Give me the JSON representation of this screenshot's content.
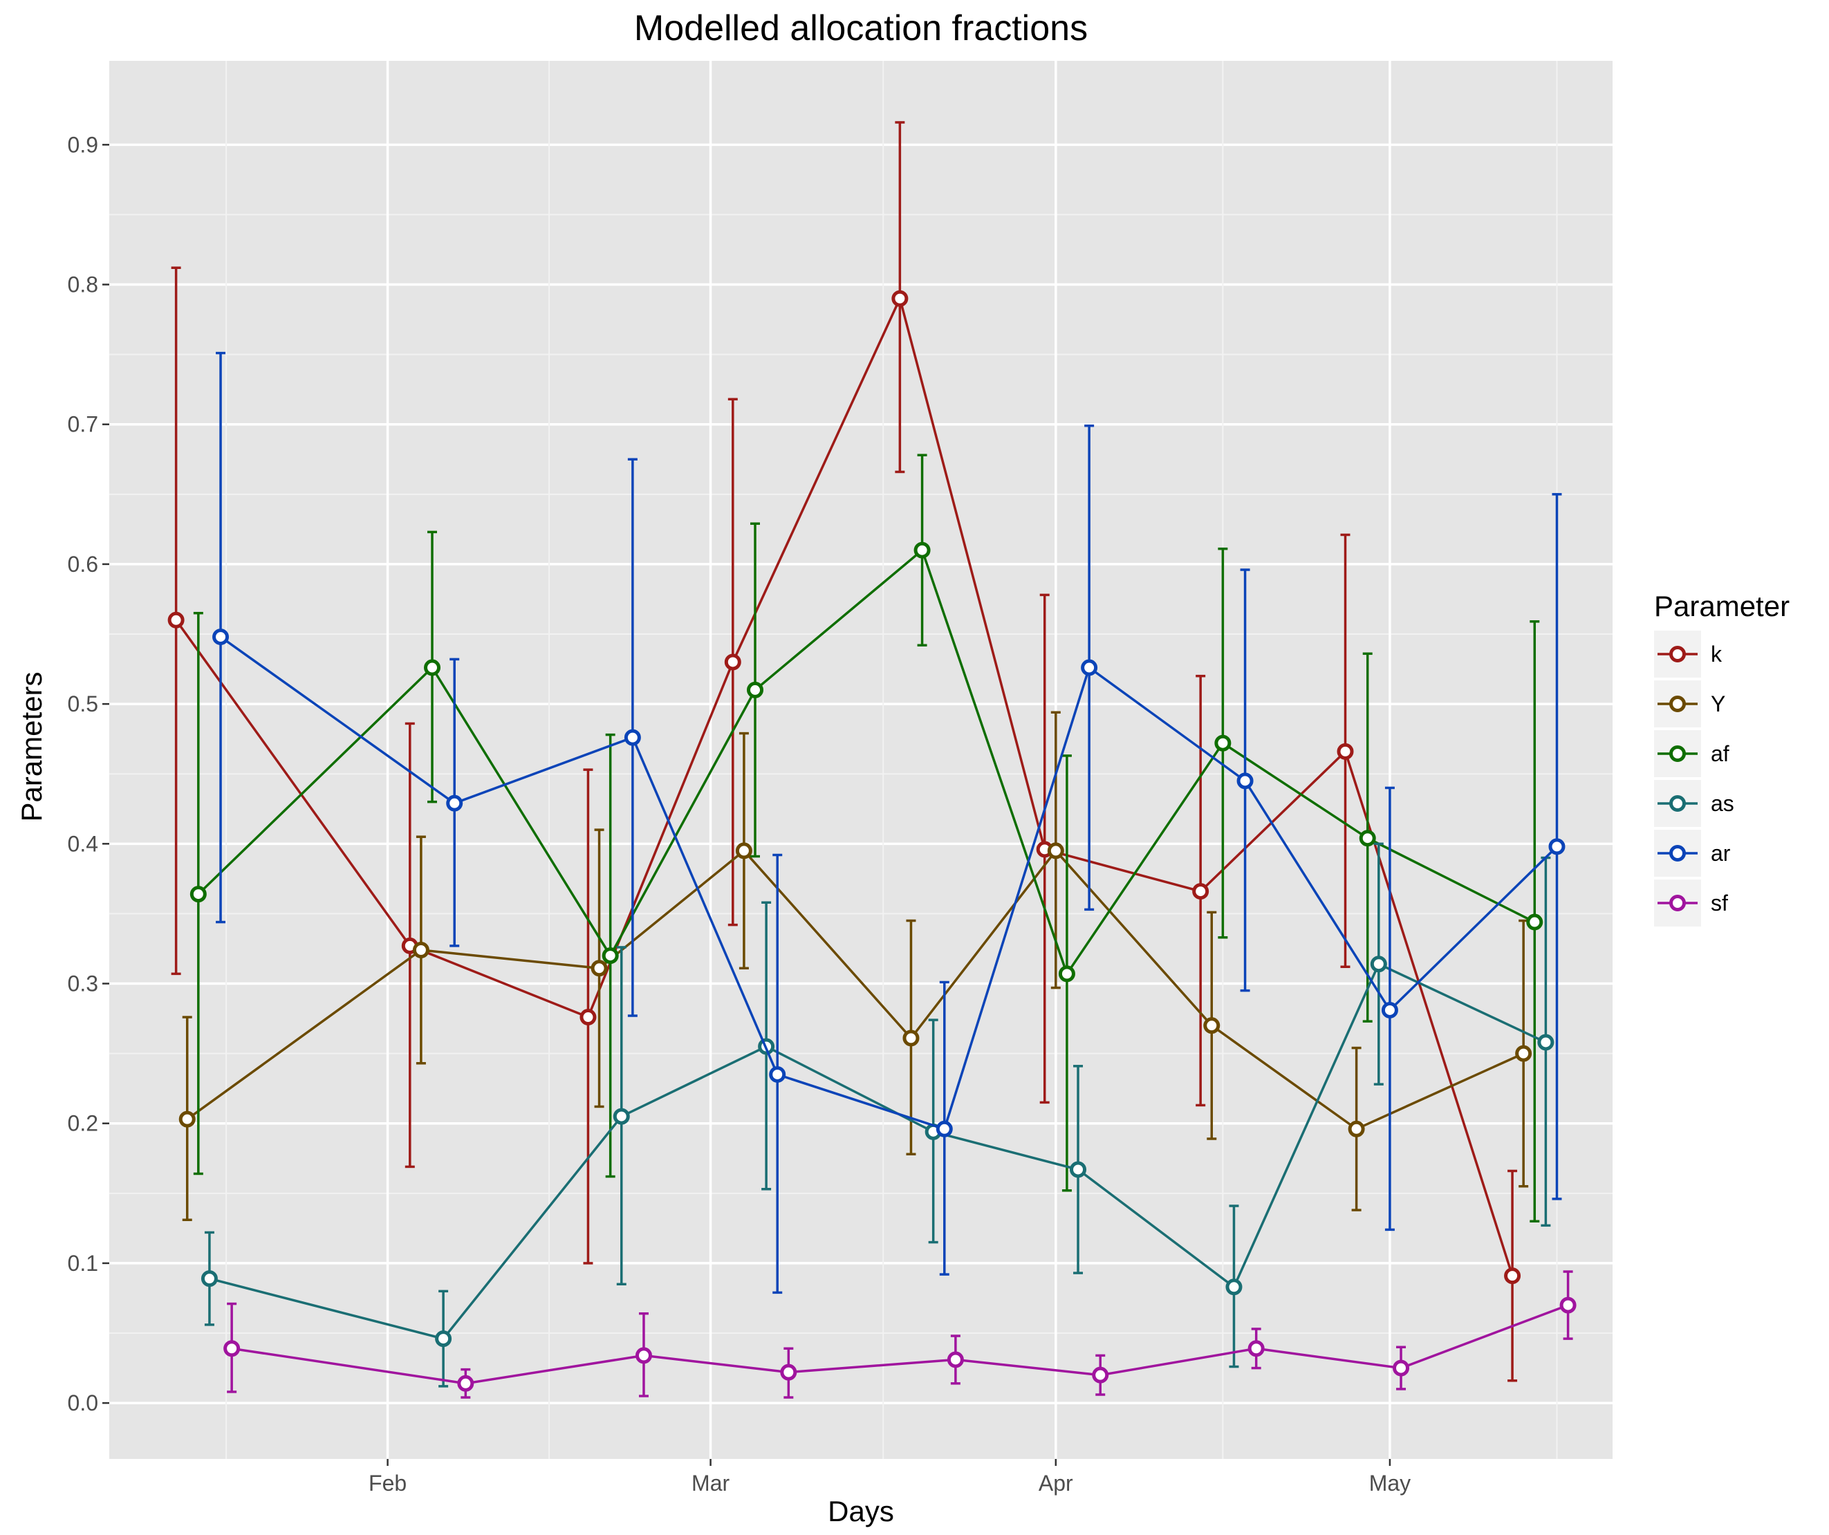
{
  "chart_data": {
    "type": "line",
    "title": "Modelled allocation fractions",
    "xlabel": "Days",
    "ylabel": "Parameters",
    "x_type": "date",
    "xlim": [
      "2016-01-07",
      "2016-05-21"
    ],
    "ylim": [
      -0.04,
      0.96
    ],
    "yticks": [
      0.0,
      0.1,
      0.2,
      0.3,
      0.4,
      0.5,
      0.6,
      0.7,
      0.8,
      0.9
    ],
    "ytick_labels": [
      "0.0",
      "0.1",
      "0.2",
      "0.3",
      "0.4",
      "0.5",
      "0.6",
      "0.7",
      "0.8",
      "0.9"
    ],
    "xticks": [
      "2016-02-01",
      "2016-03-01",
      "2016-04-01",
      "2016-05-01"
    ],
    "xtick_labels": [
      "Feb",
      "Mar",
      "Apr",
      "May"
    ],
    "grid": true,
    "background": "#e5e5e5",
    "legend": {
      "title": "Parameter",
      "position": "right"
    },
    "series": [
      {
        "name": "k",
        "color": "#9e1b18",
        "x": [
          "2016-01-13",
          "2016-02-03",
          "2016-02-19",
          "2016-03-03",
          "2016-03-18",
          "2016-03-31",
          "2016-04-14",
          "2016-04-27",
          "2016-05-12"
        ],
        "y": [
          0.56,
          0.327,
          0.276,
          0.53,
          0.79,
          0.396,
          0.366,
          0.466,
          0.091
        ],
        "ymin": [
          0.307,
          0.169,
          0.1,
          0.342,
          0.666,
          0.215,
          0.213,
          0.312,
          0.016
        ],
        "ymax": [
          0.812,
          0.486,
          0.453,
          0.718,
          0.916,
          0.578,
          0.52,
          0.621,
          0.166
        ]
      },
      {
        "name": "Y",
        "color": "#6b4a00",
        "x": [
          "2016-01-14",
          "2016-02-04",
          "2016-02-20",
          "2016-03-04",
          "2016-03-19",
          "2016-04-01",
          "2016-04-15",
          "2016-04-28",
          "2016-05-13"
        ],
        "y": [
          0.203,
          0.324,
          0.311,
          0.395,
          0.261,
          0.395,
          0.27,
          0.196,
          0.25
        ],
        "ymin": [
          0.131,
          0.243,
          0.212,
          0.311,
          0.178,
          0.297,
          0.189,
          0.138,
          0.155
        ],
        "ymax": [
          0.276,
          0.405,
          0.41,
          0.479,
          0.345,
          0.494,
          0.351,
          0.254,
          0.345
        ]
      },
      {
        "name": "af",
        "color": "#0f6e00",
        "x": [
          "2016-01-15",
          "2016-02-05",
          "2016-02-21",
          "2016-03-05",
          "2016-03-20",
          "2016-04-02",
          "2016-04-16",
          "2016-04-29",
          "2016-05-14"
        ],
        "y": [
          0.364,
          0.526,
          0.32,
          0.51,
          0.61,
          0.307,
          0.472,
          0.404,
          0.344
        ],
        "ymin": [
          0.164,
          0.43,
          0.162,
          0.391,
          0.542,
          0.152,
          0.333,
          0.273,
          0.13
        ],
        "ymax": [
          0.565,
          0.623,
          0.478,
          0.629,
          0.678,
          0.463,
          0.611,
          0.536,
          0.559
        ]
      },
      {
        "name": "as",
        "color": "#1a6e73",
        "x": [
          "2016-01-16",
          "2016-02-06",
          "2016-02-22",
          "2016-03-06",
          "2016-03-21",
          "2016-04-03",
          "2016-04-17",
          "2016-04-30",
          "2016-05-15"
        ],
        "y": [
          0.089,
          0.046,
          0.205,
          0.255,
          0.194,
          0.167,
          0.083,
          0.314,
          0.258
        ],
        "ymin": [
          0.056,
          0.012,
          0.085,
          0.153,
          0.115,
          0.093,
          0.026,
          0.228,
          0.127
        ],
        "ymax": [
          0.122,
          0.08,
          0.326,
          0.358,
          0.274,
          0.241,
          0.141,
          0.4,
          0.39
        ]
      },
      {
        "name": "ar",
        "color": "#0b44b8",
        "x": [
          "2016-01-17",
          "2016-02-07",
          "2016-02-23",
          "2016-03-07",
          "2016-03-22",
          "2016-04-04",
          "2016-04-18",
          "2016-05-01",
          "2016-05-16"
        ],
        "y": [
          0.548,
          0.429,
          0.476,
          0.235,
          0.196,
          0.526,
          0.445,
          0.281,
          0.398
        ],
        "ymin": [
          0.344,
          0.327,
          0.277,
          0.079,
          0.092,
          0.353,
          0.295,
          0.124,
          0.146
        ],
        "ymax": [
          0.751,
          0.532,
          0.675,
          0.392,
          0.301,
          0.699,
          0.596,
          0.44,
          0.65
        ]
      },
      {
        "name": "sf",
        "color": "#a0149e",
        "x": [
          "2016-01-18",
          "2016-02-08",
          "2016-02-24",
          "2016-03-08",
          "2016-03-23",
          "2016-04-05",
          "2016-04-19",
          "2016-05-02",
          "2016-05-17"
        ],
        "y": [
          0.039,
          0.014,
          0.034,
          0.022,
          0.031,
          0.02,
          0.039,
          0.025,
          0.07
        ],
        "ymin": [
          0.008,
          0.004,
          0.005,
          0.004,
          0.014,
          0.006,
          0.025,
          0.01,
          0.046
        ],
        "ymax": [
          0.071,
          0.024,
          0.064,
          0.039,
          0.048,
          0.034,
          0.053,
          0.04,
          0.094
        ]
      }
    ]
  }
}
